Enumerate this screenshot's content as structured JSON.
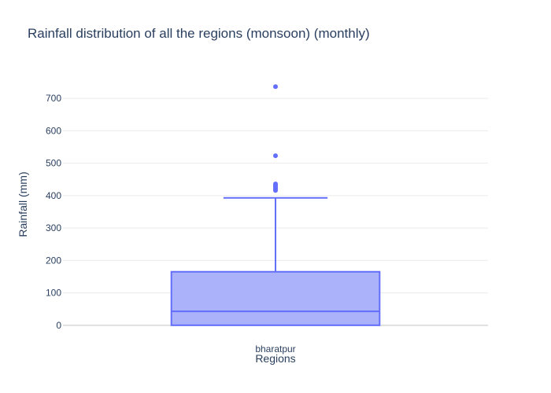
{
  "chart_data": {
    "type": "box",
    "title": "Rainfall distribution of all the regions (monsoon) (monthly)",
    "xlabel": "Regions",
    "ylabel": "Rainfall (mm)",
    "categories": [
      "bharatpur"
    ],
    "ylim": [
      -15,
      785
    ],
    "yticks": [
      0,
      100,
      200,
      300,
      400,
      500,
      600,
      700
    ],
    "grid": true,
    "legend": "none",
    "boxes": [
      {
        "category": "bharatpur",
        "min": 0,
        "q1": 0,
        "median": 43,
        "q3": 165,
        "upper_fence": 393,
        "outliers": [
          416,
          420,
          424,
          428,
          432,
          436,
          523,
          736
        ]
      }
    ],
    "colors": {
      "box_fill": "#abb2fa",
      "box_line": "#636efa",
      "grid": "#ebebeb",
      "text": "#2a3f5f"
    }
  }
}
